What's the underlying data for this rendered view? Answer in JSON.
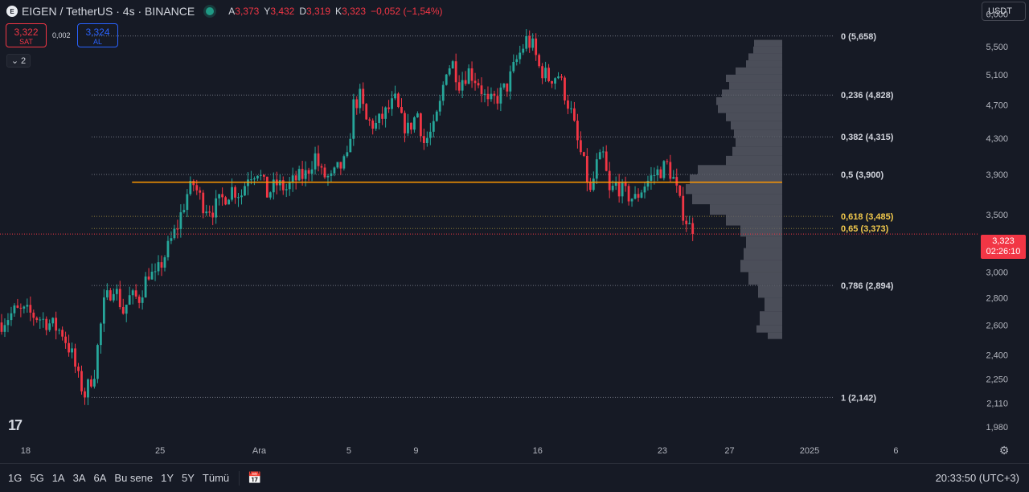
{
  "header": {
    "symbol": "EIGEN / TetherUS · 4s · BINANCE",
    "logo_text": "E",
    "ohlc": [
      {
        "label": "A",
        "value": "3,373"
      },
      {
        "label": "Y",
        "value": "3,432"
      },
      {
        "label": "D",
        "value": "3,319"
      },
      {
        "label": "K",
        "value": "3,323"
      }
    ],
    "change": "−0,052 (−1,54%)"
  },
  "trade": {
    "sell_price": "3,322",
    "sell_label": "SAT",
    "spread": "0,002",
    "buy_price": "3,324",
    "buy_label": "AL"
  },
  "indicators_count": "2",
  "currency": "USDT",
  "last_price": "3,323",
  "countdown": "02:26:10",
  "bottom": {
    "timeframes": [
      "1G",
      "5G",
      "1A",
      "3A",
      "6A",
      "Bu sene",
      "1Y",
      "5Y",
      "Tümü"
    ],
    "clock": "20:33:50 (UTC+3)"
  },
  "colors": {
    "up": "#26a69a",
    "down": "#f23645",
    "bg": "#161a25",
    "fib_highlight": "#f2c94c",
    "orange_line": "#ff9800",
    "volume_profile": "#5d606b"
  },
  "chart_data": {
    "type": "candlestick",
    "y_axis": {
      "scale": "log",
      "range": [
        1920,
        6100
      ],
      "ticks": [
        "6,000",
        "5,500",
        "5,100",
        "4,700",
        "4,300",
        "3,900",
        "3,500",
        "3,000",
        "2,800",
        "2,600",
        "2,400",
        "2,250",
        "2,110",
        "1,980"
      ],
      "tick_values": [
        6000,
        5500,
        5100,
        4700,
        4300,
        3900,
        3500,
        3000,
        2800,
        2600,
        2400,
        2250,
        2110,
        1980
      ]
    },
    "x_axis": {
      "ticks": [
        "18",
        "25",
        "Ara",
        "5",
        "9",
        "16",
        "23",
        "27",
        "2025",
        "6"
      ],
      "tick_index": [
        4,
        46,
        77,
        105,
        126,
        164,
        203,
        224,
        249,
        276
      ]
    },
    "fibonacci": [
      {
        "label": "0 (5,658)",
        "value": 5658
      },
      {
        "label": "0,236 (4,828)",
        "value": 4828
      },
      {
        "label": "0,382 (4,315)",
        "value": 4315
      },
      {
        "label": "0,5 (3,900)",
        "value": 3900
      },
      {
        "label": "0,618 (3,485)",
        "value": 3485,
        "highlight": true
      },
      {
        "label": "0,65 (3,373)",
        "value": 3373,
        "highlight": true
      },
      {
        "label": "0,786 (2,894)",
        "value": 2894
      },
      {
        "label": "1 (2,142)",
        "value": 2142
      }
    ],
    "horizontal_line": {
      "value": 3820,
      "from_index": 37,
      "to_index": 235
    },
    "current_price": 3323,
    "waypoints": [
      [
        0,
        2620
      ],
      [
        4,
        2700
      ],
      [
        8,
        2690
      ],
      [
        12,
        2650
      ],
      [
        16,
        2600
      ],
      [
        19,
        2550
      ],
      [
        22,
        2400
      ],
      [
        24,
        2250
      ],
      [
        26,
        2160
      ],
      [
        29,
        2300
      ],
      [
        32,
        2750
      ],
      [
        35,
        2900
      ],
      [
        38,
        2700
      ],
      [
        40,
        2800
      ],
      [
        43,
        2800
      ],
      [
        46,
        3000
      ],
      [
        48,
        2950
      ],
      [
        52,
        3200
      ],
      [
        55,
        3400
      ],
      [
        58,
        3700
      ],
      [
        60,
        3800
      ],
      [
        63,
        3600
      ],
      [
        66,
        3550
      ],
      [
        69,
        3650
      ],
      [
        72,
        3750
      ],
      [
        75,
        3700
      ],
      [
        77,
        3900
      ],
      [
        80,
        3950
      ],
      [
        83,
        3700
      ],
      [
        86,
        3800
      ],
      [
        89,
        3750
      ],
      [
        92,
        3850
      ],
      [
        95,
        3900
      ],
      [
        98,
        4100
      ],
      [
        100,
        3900
      ],
      [
        103,
        3850
      ],
      [
        105,
        3950
      ],
      [
        108,
        4050
      ],
      [
        110,
        4700
      ],
      [
        112,
        4800
      ],
      [
        114,
        4500
      ],
      [
        117,
        4450
      ],
      [
        120,
        4600
      ],
      [
        123,
        4750
      ],
      [
        125,
        4500
      ],
      [
        127,
        4400
      ],
      [
        130,
        4600
      ],
      [
        132,
        4250
      ],
      [
        135,
        4400
      ],
      [
        137,
        4700
      ],
      [
        139,
        5200
      ],
      [
        141,
        5250
      ],
      [
        143,
        5000
      ],
      [
        146,
        5150
      ],
      [
        149,
        5000
      ],
      [
        152,
        4700
      ],
      [
        155,
        4800
      ],
      [
        158,
        4950
      ],
      [
        161,
        5300
      ],
      [
        164,
        5600
      ],
      [
        166,
        5500
      ],
      [
        168,
        5200
      ],
      [
        171,
        5050
      ],
      [
        174,
        5100
      ],
      [
        176,
        4850
      ],
      [
        178,
        4600
      ],
      [
        180,
        4250
      ],
      [
        182,
        4000
      ],
      [
        184,
        3700
      ],
      [
        186,
        4000
      ],
      [
        188,
        4100
      ],
      [
        190,
        3700
      ],
      [
        192,
        3800
      ],
      [
        195,
        3700
      ],
      [
        198,
        3650
      ],
      [
        201,
        3800
      ],
      [
        204,
        3900
      ],
      [
        206,
        3950
      ],
      [
        208,
        4000
      ],
      [
        210,
        3850
      ],
      [
        212,
        3600
      ],
      [
        214,
        3450
      ],
      [
        216,
        3323
      ]
    ],
    "volume_profile": [
      [
        5600,
        35
      ],
      [
        5500,
        36
      ],
      [
        5400,
        42
      ],
      [
        5300,
        45
      ],
      [
        5200,
        58
      ],
      [
        5100,
        70
      ],
      [
        5000,
        66
      ],
      [
        4900,
        75
      ],
      [
        4800,
        82
      ],
      [
        4700,
        80
      ],
      [
        4600,
        70
      ],
      [
        4500,
        64
      ],
      [
        4400,
        60
      ],
      [
        4300,
        58
      ],
      [
        4200,
        62
      ],
      [
        4100,
        70
      ],
      [
        4000,
        105
      ],
      [
        3900,
        115
      ],
      [
        3800,
        120
      ],
      [
        3700,
        112
      ],
      [
        3600,
        90
      ],
      [
        3500,
        70
      ],
      [
        3400,
        52
      ],
      [
        3300,
        45
      ],
      [
        3200,
        48
      ],
      [
        3100,
        52
      ],
      [
        3000,
        42
      ],
      [
        2900,
        30
      ],
      [
        2800,
        22
      ],
      [
        2700,
        28
      ],
      [
        2600,
        32
      ],
      [
        2550,
        18
      ]
    ]
  }
}
